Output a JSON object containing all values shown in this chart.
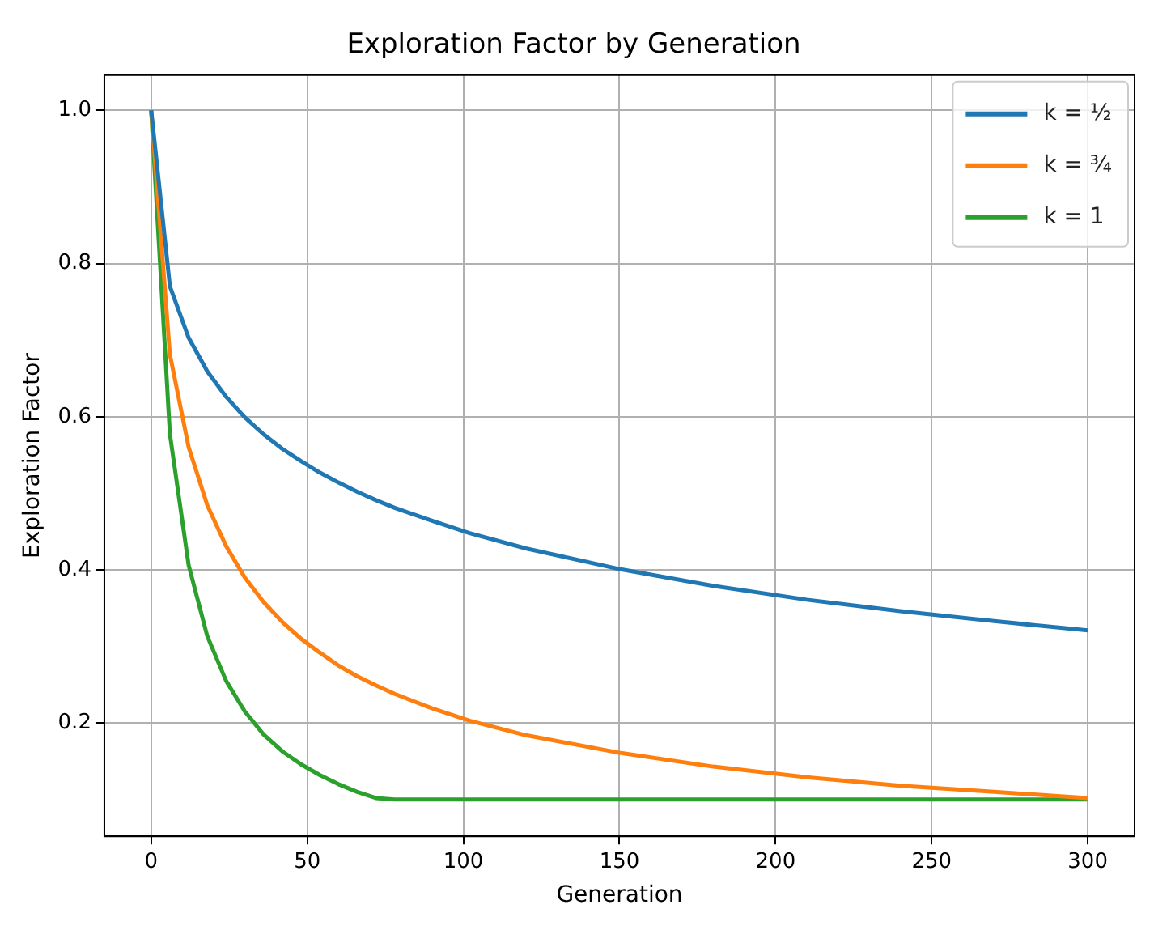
{
  "chart_data": {
    "type": "line",
    "title": "Exploration Factor by Generation",
    "xlabel": "Generation",
    "ylabel": "Exploration Factor",
    "x": [
      0,
      6,
      12,
      18,
      24,
      30,
      36,
      42,
      48,
      54,
      60,
      66,
      72,
      78,
      90,
      102,
      120,
      150,
      180,
      210,
      240,
      270,
      300
    ],
    "series": [
      {
        "name": "k = ½",
        "color": "#1f77b4",
        "values": [
          1,
          0.77,
          0.703,
          0.659,
          0.626,
          0.599,
          0.577,
          0.558,
          0.542,
          0.527,
          0.514,
          0.502,
          0.491,
          0.481,
          0.464,
          0.448,
          0.428,
          0.401,
          0.379,
          0.361,
          0.346,
          0.333,
          0.321
        ]
      },
      {
        "name": "k = ¾",
        "color": "#ff7f0e",
        "values": [
          1,
          0.681,
          0.56,
          0.484,
          0.431,
          0.39,
          0.358,
          0.332,
          0.31,
          0.292,
          0.275,
          0.261,
          0.249,
          0.238,
          0.219,
          0.203,
          0.184,
          0.161,
          0.143,
          0.129,
          0.118,
          0.11,
          0.102
        ]
      },
      {
        "name": "k = 1",
        "color": "#2ca02c",
        "values": [
          1,
          0.577,
          0.406,
          0.313,
          0.255,
          0.215,
          0.185,
          0.163,
          0.146,
          0.132,
          0.12,
          0.11,
          0.102,
          0.1,
          0.1,
          0.1,
          0.1,
          0.1,
          0.1,
          0.1,
          0.1,
          0.1,
          0.1
        ]
      }
    ],
    "xlim": [
      -15,
      315
    ],
    "xticks": [
      0,
      50,
      100,
      150,
      200,
      250,
      300
    ],
    "ylim": [
      0.052,
      1.046
    ],
    "yticks": [
      0.2,
      0.4,
      0.6,
      0.8,
      {
        "value": 1,
        "label": "1.0"
      }
    ],
    "grid": true,
    "legend": "top right",
    "marker": "none",
    "line_style": "solid"
  }
}
